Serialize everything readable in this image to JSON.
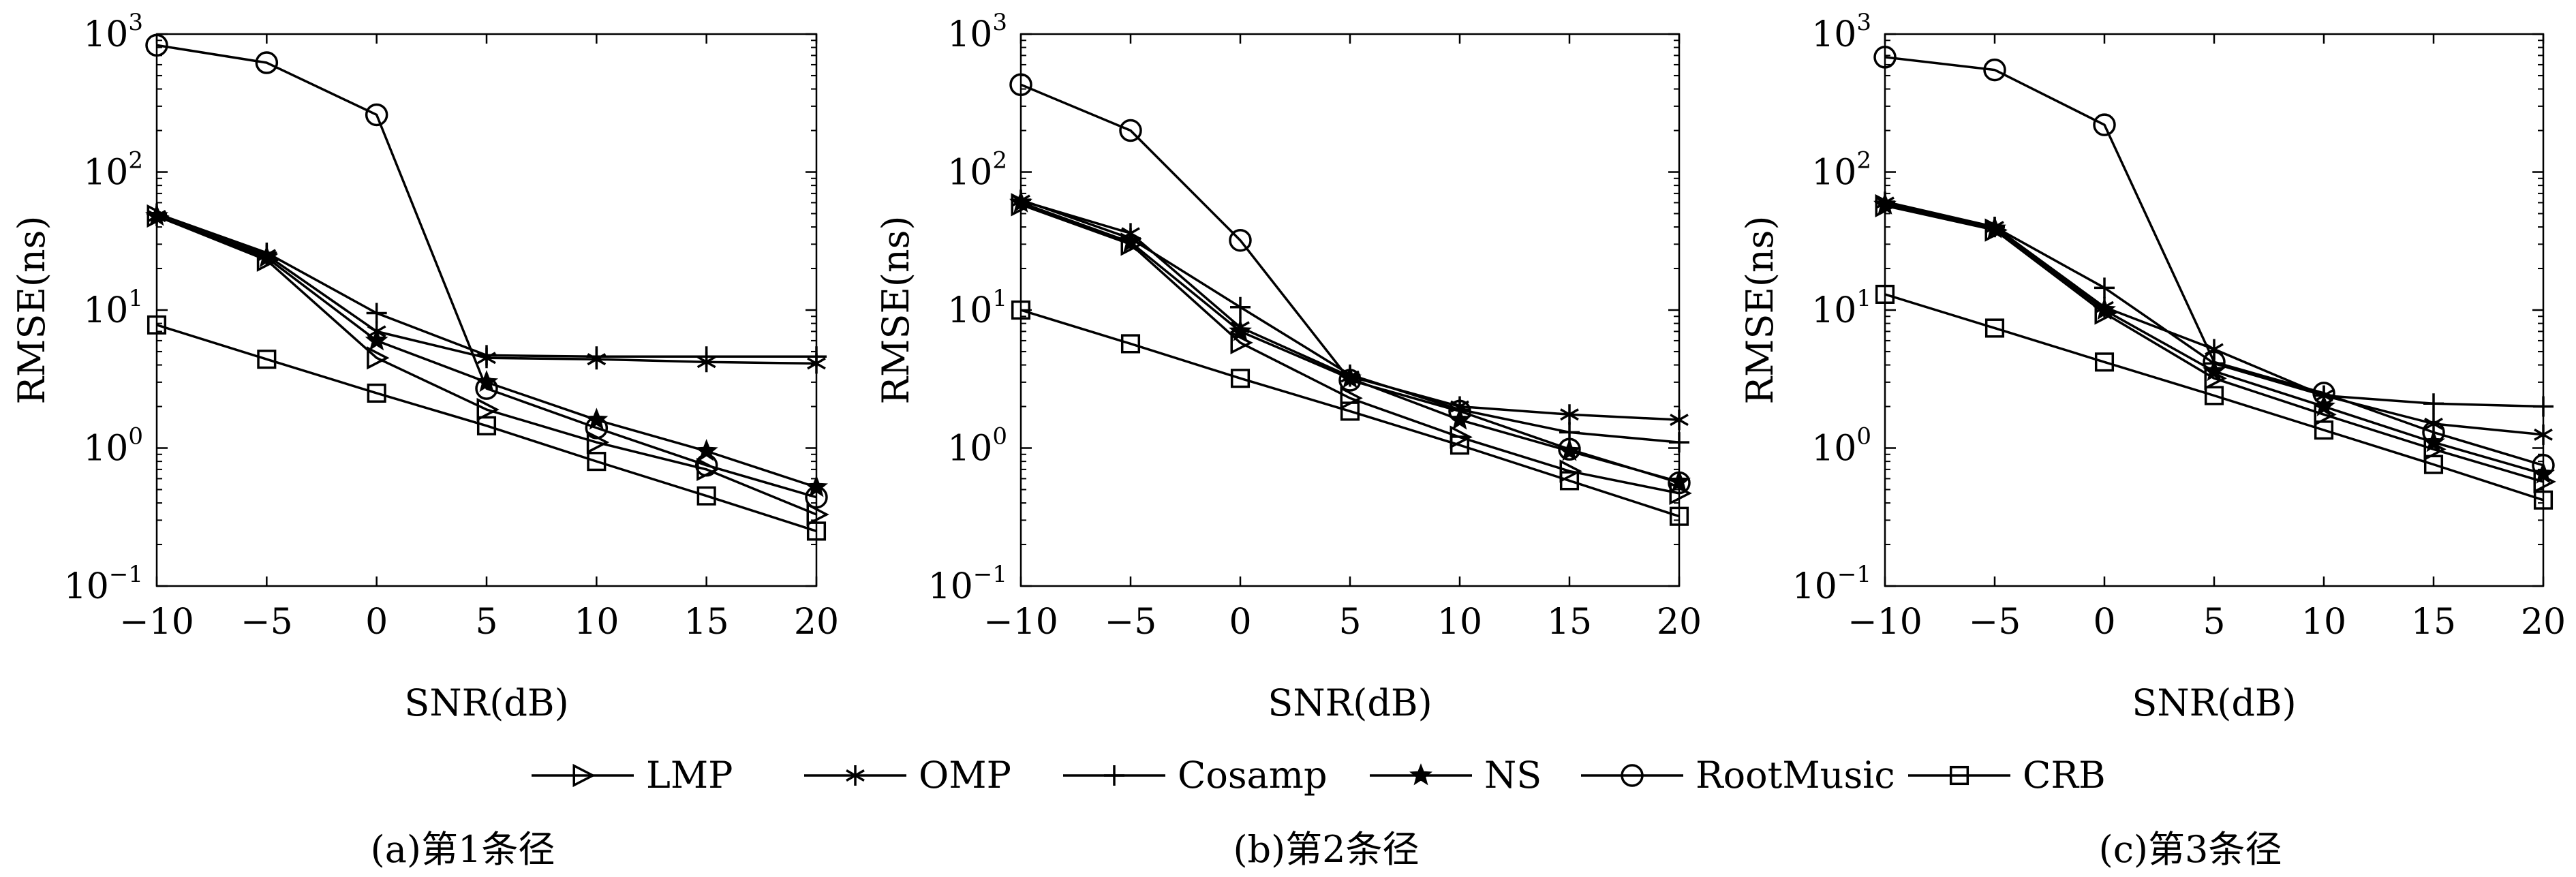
{
  "figure": {
    "legend_placement": "bottom-center",
    "colors": {
      "line": "#000000",
      "background": "#ffffff"
    }
  },
  "chart_data": [
    {
      "type": "line",
      "caption": "(a)第1条径",
      "xlabel": "SNR(dB)",
      "ylabel": "RMSE(ns)",
      "yscale": "log",
      "xlim": [
        -10,
        20
      ],
      "ylim": [
        0.1,
        1000
      ],
      "xticks": [
        "−10",
        "−5",
        "0",
        "5",
        "10",
        "15",
        "20"
      ],
      "yticks": [
        {
          "base": "10",
          "exp": "−1"
        },
        {
          "base": "10",
          "exp": "0"
        },
        {
          "base": "10",
          "exp": "1"
        },
        {
          "base": "10",
          "exp": "2"
        },
        {
          "base": "10",
          "exp": "3"
        }
      ],
      "grid": false,
      "x": [
        -10,
        -5,
        0,
        5,
        10,
        15,
        20
      ],
      "series": [
        {
          "name": "LMP",
          "marker": "triangle-right",
          "values": [
            48,
            23,
            4.5,
            1.9,
            1.1,
            0.7,
            0.33
          ]
        },
        {
          "name": "OMP",
          "marker": "asterisk",
          "values": [
            48,
            25,
            7,
            4.5,
            4.4,
            4.2,
            4.1
          ]
        },
        {
          "name": "Cosamp",
          "marker": "plus",
          "values": [
            50,
            26,
            9.5,
            4.7,
            4.6,
            4.6,
            4.6
          ]
        },
        {
          "name": "NS",
          "marker": "star",
          "values": [
            48,
            24,
            6,
            3.0,
            1.6,
            0.95,
            0.52
          ]
        },
        {
          "name": "RootMusic",
          "marker": "circle",
          "values": [
            830,
            620,
            260,
            2.7,
            1.4,
            0.75,
            0.44
          ]
        },
        {
          "name": "CRB",
          "marker": "square",
          "values": [
            7.8,
            4.4,
            2.5,
            1.45,
            0.8,
            0.45,
            0.25
          ]
        }
      ]
    },
    {
      "type": "line",
      "caption": "(b)第2条径",
      "xlabel": "SNR(dB)",
      "ylabel": "RMSE(ns)",
      "yscale": "log",
      "xlim": [
        -10,
        20
      ],
      "ylim": [
        0.1,
        1000
      ],
      "xticks": [
        "−10",
        "−5",
        "0",
        "5",
        "10",
        "15",
        "20"
      ],
      "yticks": [
        {
          "base": "10",
          "exp": "−1"
        },
        {
          "base": "10",
          "exp": "0"
        },
        {
          "base": "10",
          "exp": "1"
        },
        {
          "base": "10",
          "exp": "2"
        },
        {
          "base": "10",
          "exp": "3"
        }
      ],
      "grid": false,
      "x": [
        -10,
        -5,
        0,
        5,
        10,
        15,
        20
      ],
      "series": [
        {
          "name": "LMP",
          "marker": "triangle-right",
          "values": [
            58,
            30,
            5.8,
            2.3,
            1.2,
            0.68,
            0.47
          ]
        },
        {
          "name": "OMP",
          "marker": "asterisk",
          "values": [
            62,
            36,
            7.5,
            3.3,
            2.0,
            1.75,
            1.6
          ]
        },
        {
          "name": "Cosamp",
          "marker": "plus",
          "values": [
            63,
            33,
            10.5,
            3.4,
            1.9,
            1.3,
            1.1
          ]
        },
        {
          "name": "NS",
          "marker": "star",
          "values": [
            60,
            31,
            7,
            3.2,
            1.6,
            0.95,
            0.57
          ]
        },
        {
          "name": "RootMusic",
          "marker": "circle",
          "values": [
            430,
            200,
            32,
            3.1,
            1.85,
            0.98,
            0.56
          ]
        },
        {
          "name": "CRB",
          "marker": "square",
          "values": [
            10,
            5.7,
            3.2,
            1.85,
            1.05,
            0.58,
            0.32
          ]
        }
      ]
    },
    {
      "type": "line",
      "caption": "(c)第3条径",
      "xlabel": "SNR(dB)",
      "ylabel": "RMSE(ns)",
      "yscale": "log",
      "xlim": [
        -10,
        20
      ],
      "ylim": [
        0.1,
        1000
      ],
      "xticks": [
        "−10",
        "−5",
        "0",
        "5",
        "10",
        "15",
        "20"
      ],
      "yticks": [
        {
          "base": "10",
          "exp": "−1"
        },
        {
          "base": "10",
          "exp": "0"
        },
        {
          "base": "10",
          "exp": "1"
        },
        {
          "base": "10",
          "exp": "2"
        },
        {
          "base": "10",
          "exp": "3"
        }
      ],
      "grid": false,
      "x": [
        -10,
        -5,
        0,
        5,
        10,
        15,
        20
      ],
      "series": [
        {
          "name": "LMP",
          "marker": "triangle-right",
          "values": [
            57,
            38,
            9.5,
            3.2,
            1.75,
            0.98,
            0.57
          ]
        },
        {
          "name": "OMP",
          "marker": "asterisk",
          "values": [
            60,
            40,
            10.5,
            5.2,
            2.4,
            1.5,
            1.25
          ]
        },
        {
          "name": "Cosamp",
          "marker": "plus",
          "values": [
            61,
            40,
            14.5,
            4.1,
            2.4,
            2.1,
            2.0
          ]
        },
        {
          "name": "NS",
          "marker": "star",
          "values": [
            58,
            39,
            10,
            3.6,
            2.0,
            1.1,
            0.65
          ]
        },
        {
          "name": "RootMusic",
          "marker": "circle",
          "values": [
            680,
            550,
            220,
            4.2,
            2.5,
            1.3,
            0.75
          ]
        },
        {
          "name": "CRB",
          "marker": "square",
          "values": [
            13,
            7.4,
            4.2,
            2.4,
            1.35,
            0.76,
            0.42
          ]
        }
      ]
    }
  ]
}
